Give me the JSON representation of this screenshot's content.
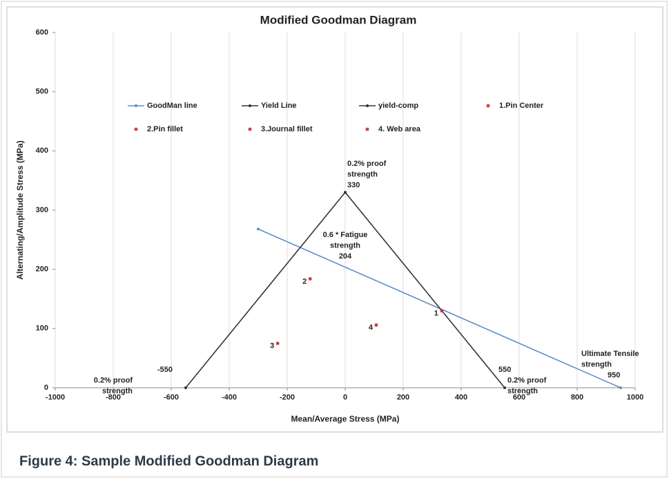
{
  "chart_data": {
    "type": "scatter",
    "title": "Modified Goodman Diagram",
    "x_label": "Mean/Average Stress (MPa)",
    "y_label": "Alternating/Amplitude Stress (MPa)",
    "xlim": [
      -1000,
      1000
    ],
    "xticks": [
      -1000,
      -800,
      -600,
      -400,
      -200,
      0,
      200,
      400,
      600,
      800,
      1000
    ],
    "ylim": [
      0,
      600
    ],
    "yticks": [
      0,
      100,
      200,
      300,
      400,
      500,
      600
    ],
    "grid": "x",
    "series": [
      {
        "name": "GoodMan line",
        "mode": "lines",
        "color": "#5b8fc7",
        "x": [
          -300,
          950
        ],
        "values": [
          268,
          0
        ]
      },
      {
        "name": "Yield Line",
        "mode": "lines",
        "color": "#333333",
        "x": [
          0,
          550
        ],
        "values": [
          330,
          0
        ]
      },
      {
        "name": "yield-comp",
        "mode": "lines",
        "color": "#333333",
        "x": [
          -550,
          0
        ],
        "values": [
          0,
          330
        ]
      },
      {
        "name": "1.Pin Center",
        "mode": "markers",
        "color": "#d03030",
        "label": "1",
        "x": [
          333
        ],
        "values": [
          130
        ]
      },
      {
        "name": "2.Pin fillet",
        "mode": "markers",
        "color": "#d03030",
        "label": "2",
        "x": [
          -121
        ],
        "values": [
          184
        ]
      },
      {
        "name": "3.Journal fillet",
        "mode": "markers",
        "color": "#d03030",
        "label": "3",
        "x": [
          -233
        ],
        "values": [
          75
        ]
      },
      {
        "name": "4. Web area",
        "mode": "markers",
        "color": "#d03030",
        "label": "4",
        "x": [
          107
        ],
        "values": [
          106
        ]
      }
    ],
    "annotations": [
      {
        "lines": [
          "0.2% proof",
          "strength",
          "330"
        ]
      },
      {
        "lines": [
          "0.6 * Fatigue",
          "strength",
          "204"
        ]
      },
      {
        "lines": [
          "-550",
          "0.2% proof",
          "strength"
        ]
      },
      {
        "lines": [
          "550",
          "0.2% proof",
          "strength"
        ]
      },
      {
        "lines": [
          "Ultimate Tensile",
          "strength",
          "950"
        ]
      }
    ]
  },
  "caption": "Figure 4: Sample Modified Goodman Diagram"
}
